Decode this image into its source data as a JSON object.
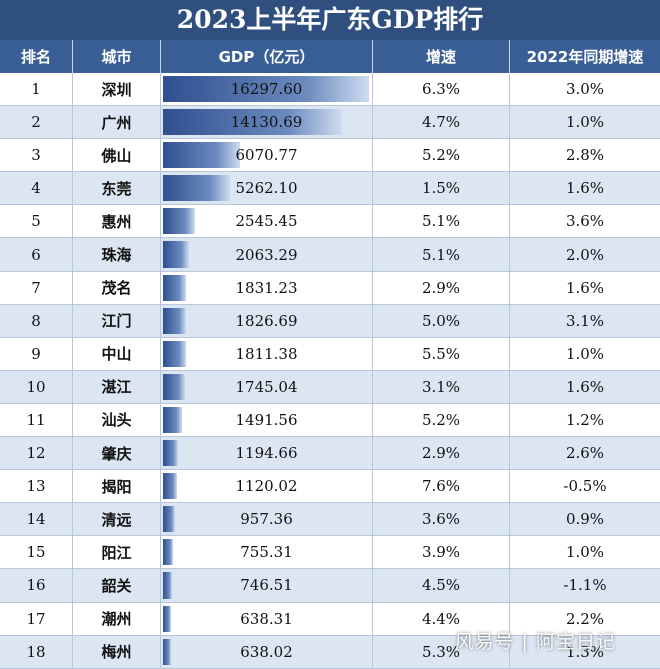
{
  "title": "2023上半年广东GDP排行",
  "headers": [
    "排名",
    "城市",
    "GDP（亿元）",
    "增速",
    "2022年同期增速"
  ],
  "max_gdp": 16297.6,
  "rows": [
    {
      "rank": "1",
      "city": "深圳",
      "gdp": "16297.60",
      "gdp_value": 16297.6,
      "growth": "6.3%",
      "prev_growth": "3.0%"
    },
    {
      "rank": "2",
      "city": "广州",
      "gdp": "14130.69",
      "gdp_value": 14130.69,
      "growth": "4.7%",
      "prev_growth": "1.0%"
    },
    {
      "rank": "3",
      "city": "佛山",
      "gdp": "6070.77",
      "gdp_value": 6070.77,
      "growth": "5.2%",
      "prev_growth": "2.8%"
    },
    {
      "rank": "4",
      "city": "东莞",
      "gdp": "5262.10",
      "gdp_value": 5262.1,
      "growth": "1.5%",
      "prev_growth": "1.6%"
    },
    {
      "rank": "5",
      "city": "惠州",
      "gdp": "2545.45",
      "gdp_value": 2545.45,
      "growth": "5.1%",
      "prev_growth": "3.6%"
    },
    {
      "rank": "6",
      "city": "珠海",
      "gdp": "2063.29",
      "gdp_value": 2063.29,
      "growth": "5.1%",
      "prev_growth": "2.0%"
    },
    {
      "rank": "7",
      "city": "茂名",
      "gdp": "1831.23",
      "gdp_value": 1831.23,
      "growth": "2.9%",
      "prev_growth": "1.6%"
    },
    {
      "rank": "8",
      "city": "江门",
      "gdp": "1826.69",
      "gdp_value": 1826.69,
      "growth": "5.0%",
      "prev_growth": "3.1%"
    },
    {
      "rank": "9",
      "city": "中山",
      "gdp": "1811.38",
      "gdp_value": 1811.38,
      "growth": "5.5%",
      "prev_growth": "1.0%"
    },
    {
      "rank": "10",
      "city": "湛江",
      "gdp": "1745.04",
      "gdp_value": 1745.04,
      "growth": "3.1%",
      "prev_growth": "1.6%"
    },
    {
      "rank": "11",
      "city": "汕头",
      "gdp": "1491.56",
      "gdp_value": 1491.56,
      "growth": "5.2%",
      "prev_growth": "1.2%"
    },
    {
      "rank": "12",
      "city": "肇庆",
      "gdp": "1194.66",
      "gdp_value": 1194.66,
      "growth": "2.9%",
      "prev_growth": "2.6%"
    },
    {
      "rank": "13",
      "city": "揭阳",
      "gdp": "1120.02",
      "gdp_value": 1120.02,
      "growth": "7.6%",
      "prev_growth": "-0.5%"
    },
    {
      "rank": "14",
      "city": "清远",
      "gdp": "957.36",
      "gdp_value": 957.36,
      "growth": "3.6%",
      "prev_growth": "0.9%"
    },
    {
      "rank": "15",
      "city": "阳江",
      "gdp": "755.31",
      "gdp_value": 755.31,
      "growth": "3.9%",
      "prev_growth": "1.0%"
    },
    {
      "rank": "16",
      "city": "韶关",
      "gdp": "746.51",
      "gdp_value": 746.51,
      "growth": "4.5%",
      "prev_growth": "-1.1%"
    },
    {
      "rank": "17",
      "city": "潮州",
      "gdp": "638.31",
      "gdp_value": 638.31,
      "growth": "4.4%",
      "prev_growth": "2.2%"
    },
    {
      "rank": "18",
      "city": "梅州",
      "gdp": "638.02",
      "gdp_value": 638.02,
      "growth": "5.3%",
      "prev_growth": "1.3%"
    }
  ],
  "watermark": "风易号 | 阿宝日记",
  "colors": {
    "title_bg": "#2f4f7f",
    "header_bg": "#3a5f97",
    "alt_row_bg": "#dce6f3",
    "bar": "#2f4f8f"
  }
}
